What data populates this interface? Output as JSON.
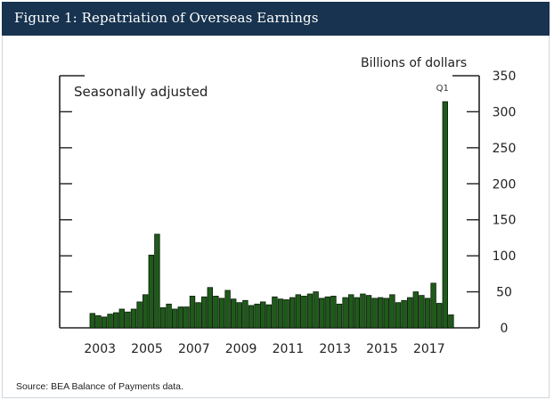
{
  "figure": {
    "title": "Figure 1: Repatriation of Overseas Earnings",
    "source": "Source: BEA Balance of Payments data.",
    "header_color": "#17334f",
    "bar_color": "#1f5a1a",
    "bar_stroke": "#0b1f09"
  },
  "chart_data": {
    "type": "bar",
    "title": "Figure 1: Repatriation of Overseas Earnings",
    "subtitle": "Seasonally adjusted",
    "ylabel": "Billions of dollars",
    "xlabel": "",
    "ylim": [
      0,
      350
    ],
    "yticks": [
      0,
      50,
      100,
      150,
      200,
      250,
      300,
      350
    ],
    "xtick_labels": [
      "2003",
      "2005",
      "2007",
      "2009",
      "2011",
      "2013",
      "2015",
      "2017"
    ],
    "frequency": "quarterly",
    "start": "2003Q1",
    "grid": false,
    "annotations": [
      {
        "label": "Q1",
        "category": "2018Q1"
      }
    ],
    "categories": [
      "2003Q1",
      "2003Q2",
      "2003Q3",
      "2003Q4",
      "2004Q1",
      "2004Q2",
      "2004Q3",
      "2004Q4",
      "2005Q1",
      "2005Q2",
      "2005Q3",
      "2005Q4",
      "2006Q1",
      "2006Q2",
      "2006Q3",
      "2006Q4",
      "2007Q1",
      "2007Q2",
      "2007Q3",
      "2007Q4",
      "2008Q1",
      "2008Q2",
      "2008Q3",
      "2008Q4",
      "2009Q1",
      "2009Q2",
      "2009Q3",
      "2009Q4",
      "2010Q1",
      "2010Q2",
      "2010Q3",
      "2010Q4",
      "2011Q1",
      "2011Q2",
      "2011Q3",
      "2011Q4",
      "2012Q1",
      "2012Q2",
      "2012Q3",
      "2012Q4",
      "2013Q1",
      "2013Q2",
      "2013Q3",
      "2013Q4",
      "2014Q1",
      "2014Q2",
      "2014Q3",
      "2014Q4",
      "2015Q1",
      "2015Q2",
      "2015Q3",
      "2015Q4",
      "2016Q1",
      "2016Q2",
      "2016Q3",
      "2016Q4",
      "2017Q1",
      "2017Q2",
      "2017Q3",
      "2017Q4",
      "2018Q1",
      "2018Q2"
    ],
    "values": [
      20,
      17,
      15,
      19,
      21,
      26,
      22,
      26,
      36,
      46,
      101,
      130,
      28,
      33,
      26,
      29,
      29,
      44,
      35,
      43,
      56,
      44,
      41,
      52,
      40,
      35,
      38,
      31,
      33,
      36,
      32,
      43,
      40,
      39,
      42,
      46,
      44,
      47,
      50,
      41,
      43,
      44,
      33,
      42,
      46,
      42,
      47,
      45,
      41,
      42,
      41,
      46,
      35,
      38,
      42,
      50,
      45,
      41,
      62,
      34,
      314,
      18
    ]
  }
}
